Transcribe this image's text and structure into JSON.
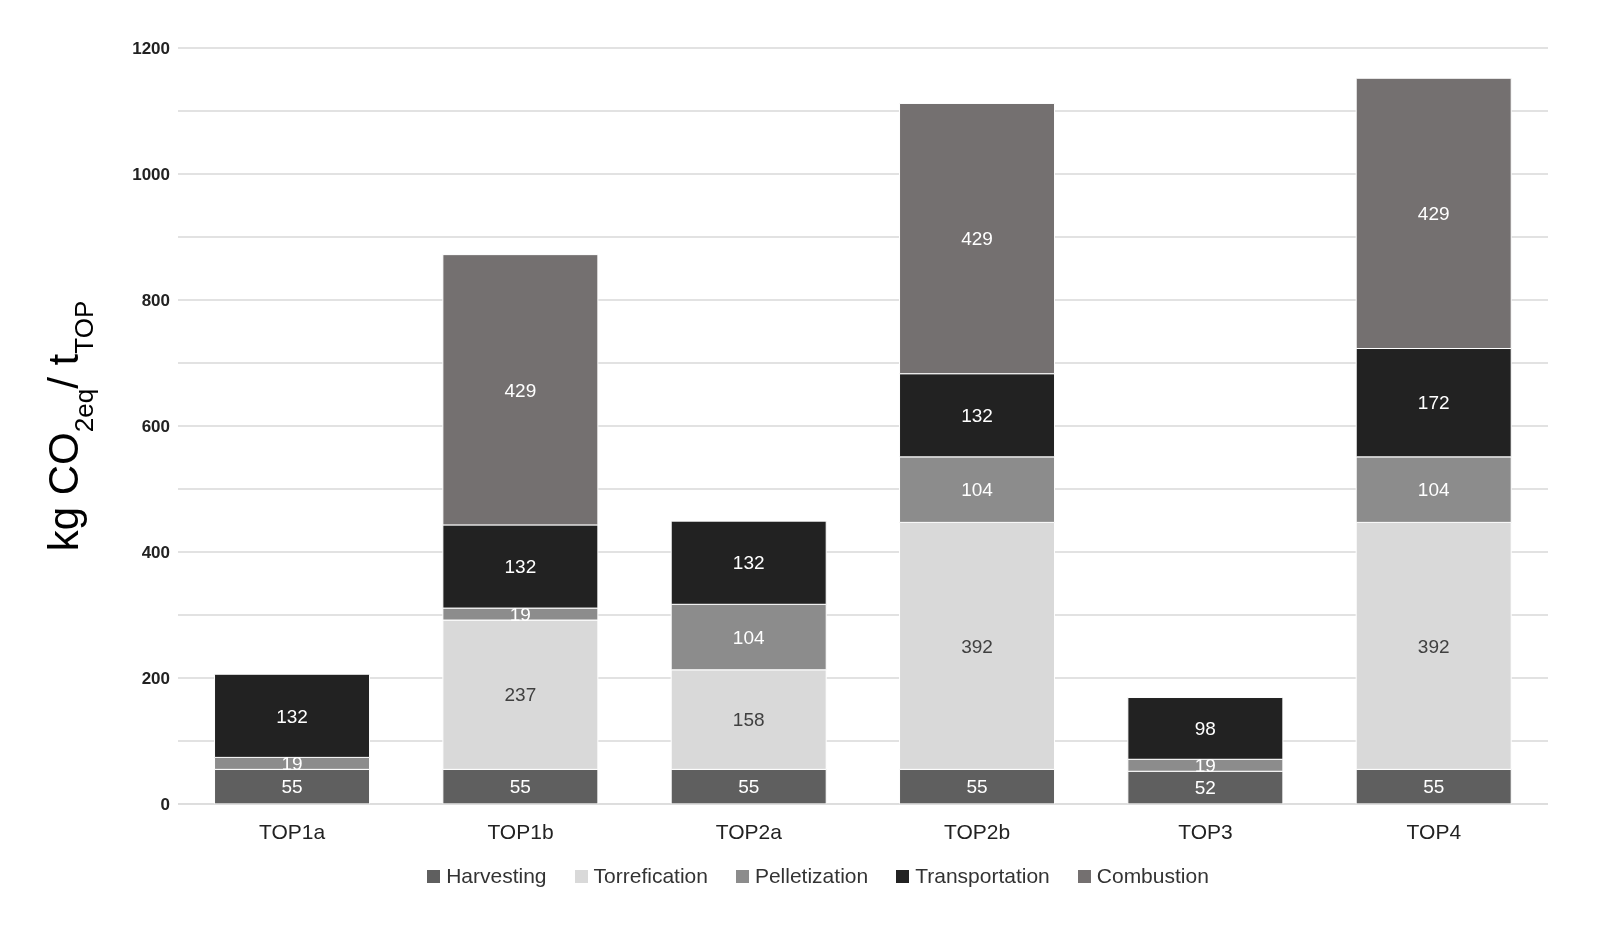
{
  "chart_data": {
    "type": "bar",
    "stacked": true,
    "ylabel": "kg CO$_{2eq}$/ t$_{TOP}$",
    "categories": [
      "TOP1a",
      "TOP1b",
      "TOP2a",
      "TOP2b",
      "TOP3",
      "TOP4"
    ],
    "series": [
      {
        "name": "Harvesting",
        "color": "#5f5f5f",
        "values": [
          55,
          55,
          55,
          55,
          52,
          55
        ]
      },
      {
        "name": "Torrefication",
        "color": "#d9d9d9",
        "values": [
          null,
          237,
          158,
          392,
          null,
          392
        ]
      },
      {
        "name": "Pelletization",
        "color": "#8c8c8c",
        "values": [
          19,
          19,
          104,
          104,
          19,
          104
        ]
      },
      {
        "name": "Transportation",
        "color": "#222222",
        "values": [
          132,
          132,
          132,
          132,
          98,
          172
        ]
      },
      {
        "name": "Combustion",
        "color": "#747070",
        "values": [
          null,
          429,
          null,
          429,
          null,
          429
        ]
      }
    ],
    "ylim": [
      0,
      1200
    ],
    "yticks": [
      0,
      {
        "value": 100,
        "label": null
      },
      200,
      {
        "value": 300,
        "label": null
      },
      400,
      {
        "value": 500,
        "label": null
      },
      600,
      {
        "value": 700,
        "label": null
      },
      800,
      {
        "value": 900,
        "label": null
      },
      1000,
      {
        "value": 1100,
        "label": null
      },
      1200
    ],
    "grid": "y",
    "legend": "bottom",
    "data_labels": true
  }
}
